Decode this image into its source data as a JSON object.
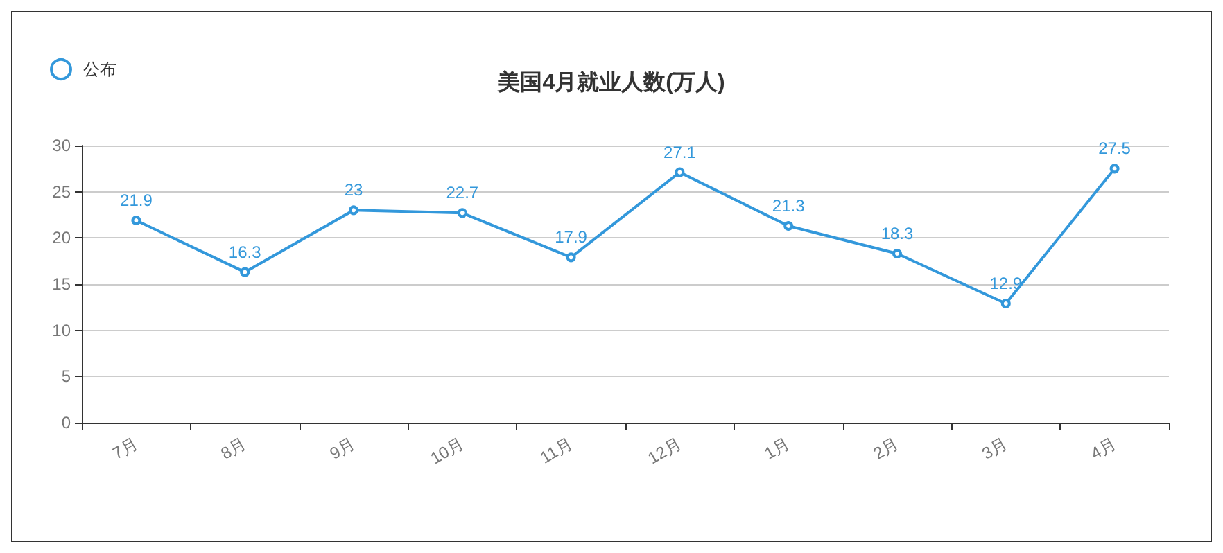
{
  "chart_data": {
    "type": "line",
    "title": "美国4月就业人数(万人)",
    "categories": [
      "7月",
      "8月",
      "9月",
      "10月",
      "11月",
      "12月",
      "1月",
      "2月",
      "3月",
      "4月"
    ],
    "series": [
      {
        "name": "公布",
        "color": "#3398db",
        "values": [
          21.9,
          16.3,
          23,
          22.7,
          17.9,
          27.1,
          21.3,
          18.3,
          12.9,
          27.5
        ]
      }
    ],
    "ylim": [
      0,
      30
    ],
    "yticks": [
      0,
      5,
      10,
      15,
      20,
      25,
      30
    ],
    "grid": "y",
    "legend": "top left",
    "marker": "circle",
    "data_labels": true
  }
}
